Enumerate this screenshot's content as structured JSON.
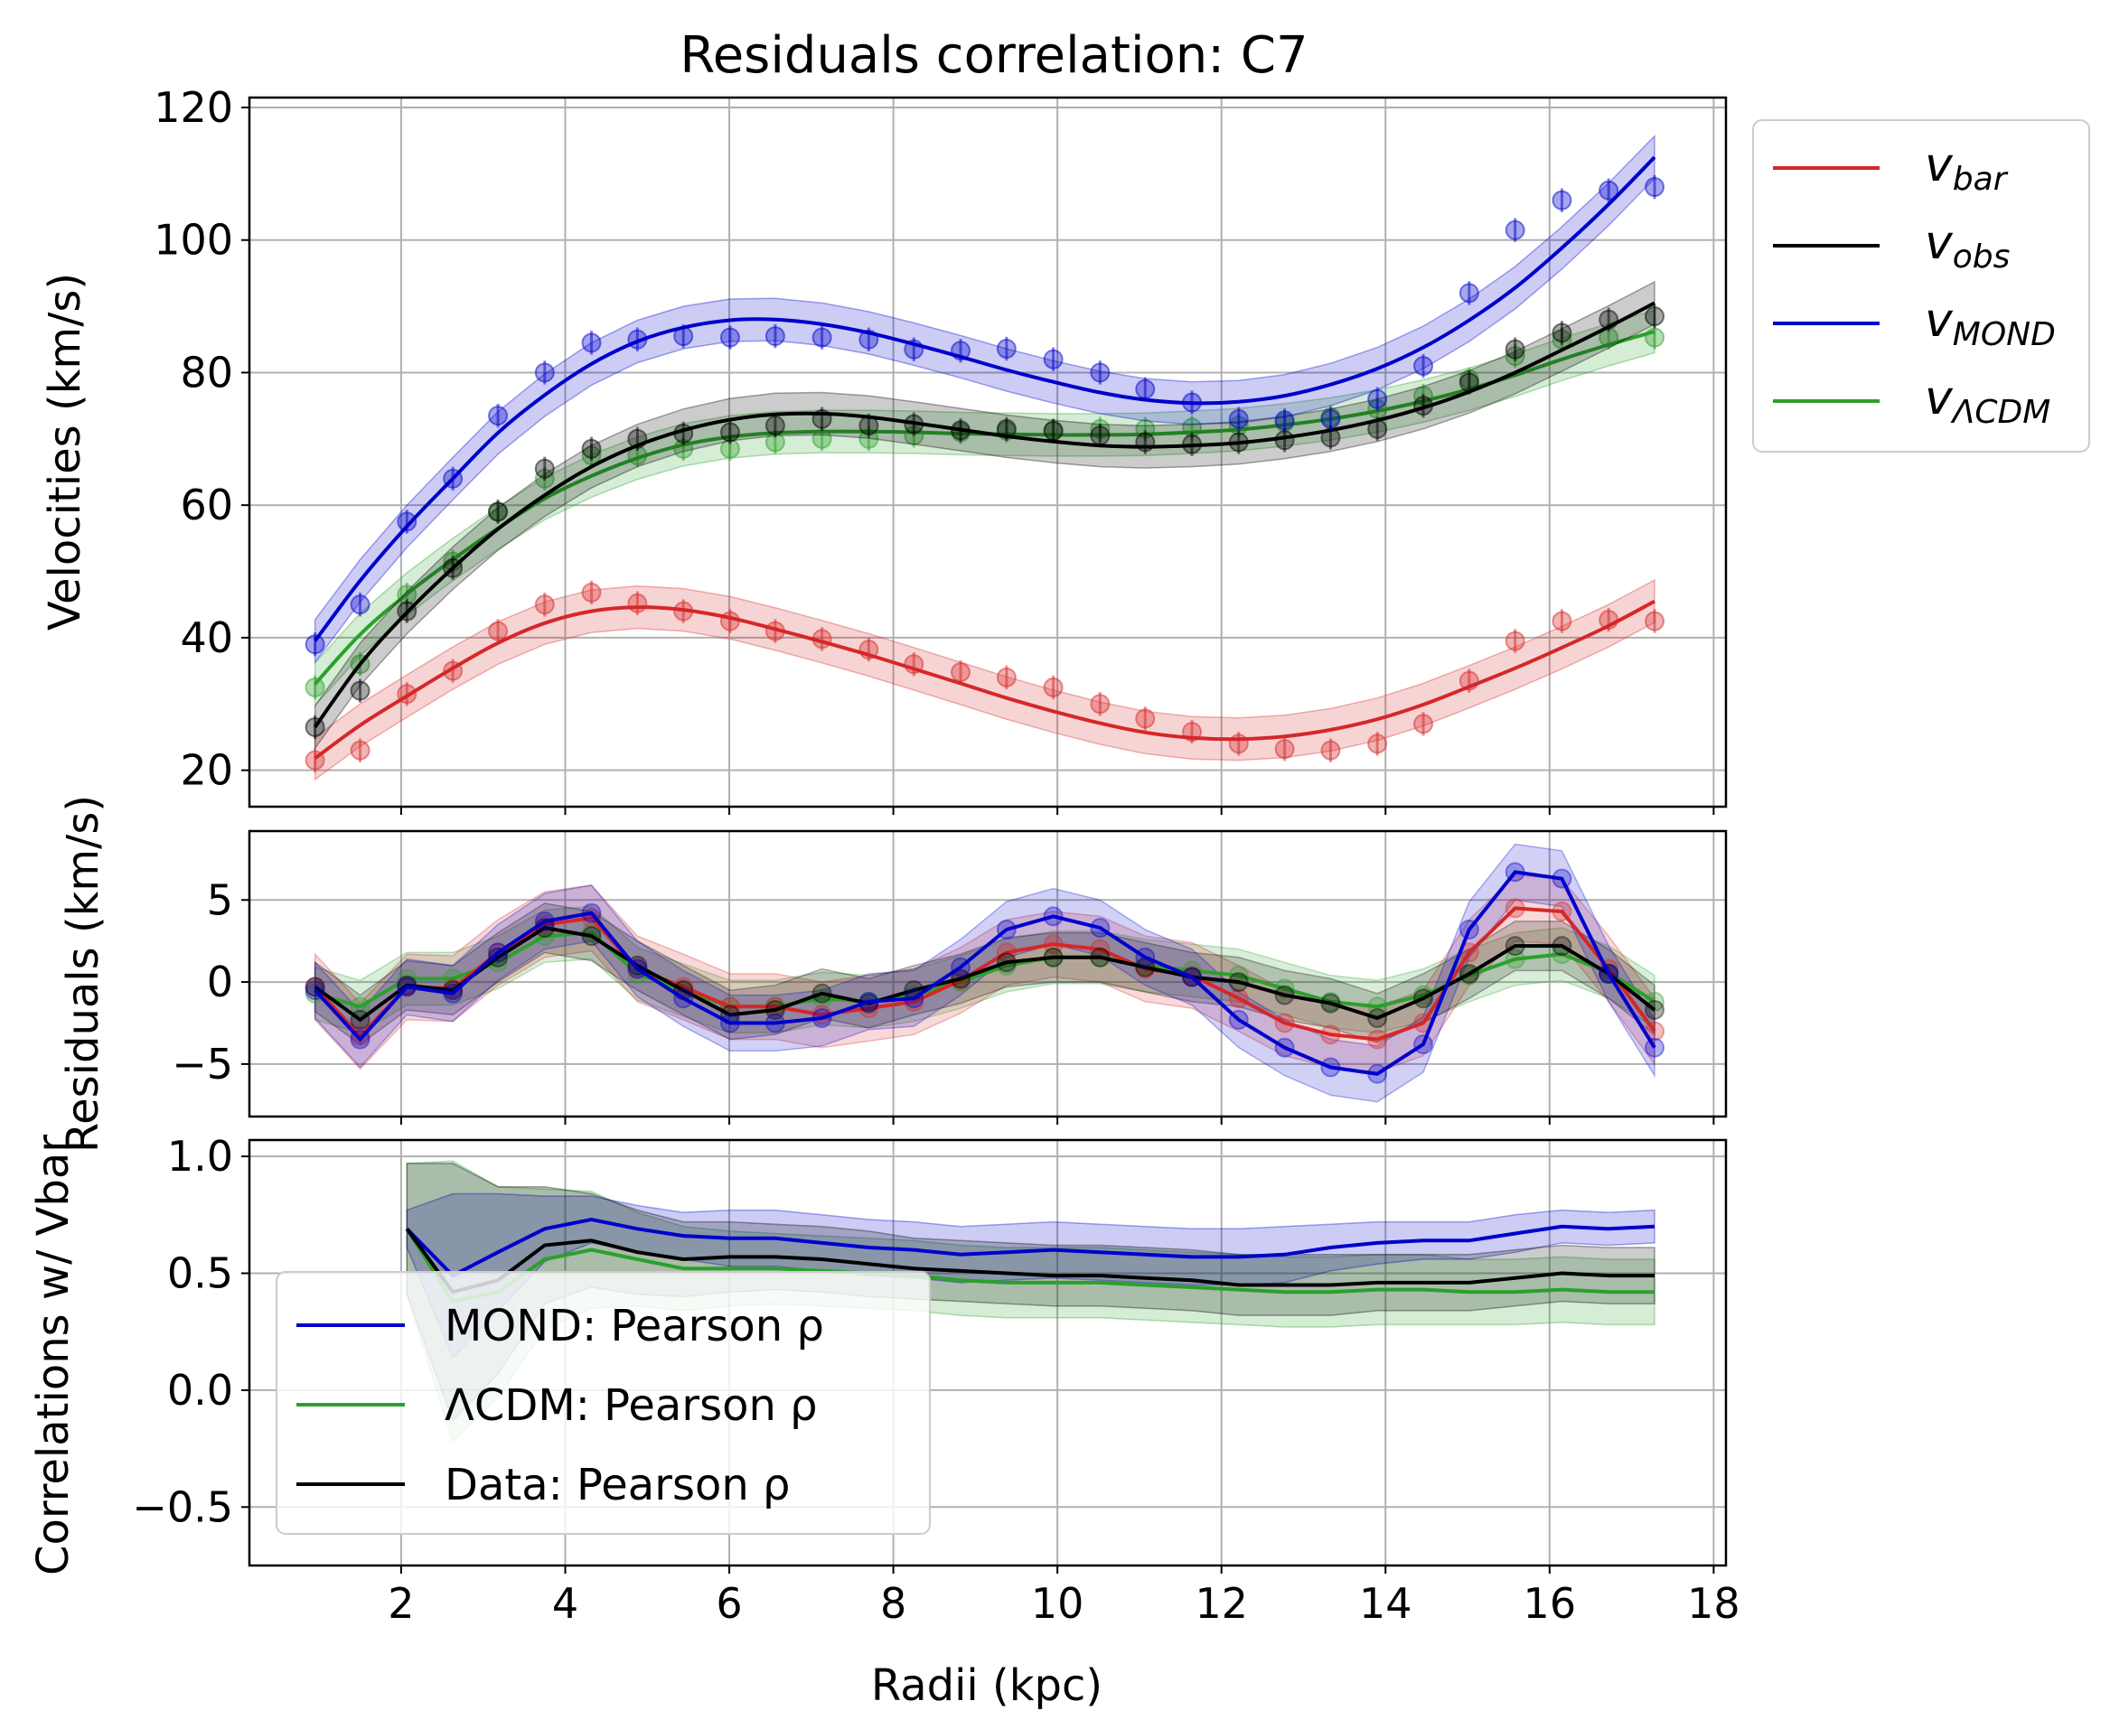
{
  "title": "Residuals correlation: C7",
  "xlabel": "Radii (kpc)",
  "colors": {
    "bar": "#d62728",
    "obs": "#000000",
    "mond": "#0000cc",
    "lcdm": "#2ca02c",
    "grid": "#b0b0b0"
  },
  "chart_data": [
    {
      "type": "line",
      "panel": "velocities",
      "ylabel": "Velocities (km/s)",
      "xlim": [
        0.15,
        18.15
      ],
      "ylim": [
        14.5,
        121.5
      ],
      "yticks": [
        20,
        40,
        60,
        80,
        100,
        120
      ],
      "grid": true,
      "legend_placement": "outside upper right",
      "x": [
        0.95,
        1.5,
        2.07,
        2.63,
        3.18,
        3.75,
        4.32,
        4.88,
        5.44,
        6.01,
        6.56,
        7.13,
        7.7,
        8.25,
        8.82,
        9.38,
        9.95,
        10.52,
        11.07,
        11.64,
        12.21,
        12.77,
        13.33,
        13.9,
        14.46,
        15.02,
        15.58,
        16.15,
        16.72,
        17.28
      ],
      "series": [
        {
          "name": "v_bar",
          "key": "bar",
          "points": [
            21.5,
            23,
            31.5,
            35,
            41,
            45,
            46.8,
            45.2,
            44,
            42.5,
            41,
            39.8,
            38.2,
            36,
            34.8,
            34,
            32.5,
            30,
            27.8,
            25.8,
            24,
            23.2,
            23,
            24,
            27,
            33.5,
            39.5,
            42.5,
            42.7,
            42.5
          ],
          "fit": [
            21.8,
            26.8,
            31.2,
            35.4,
            39.2,
            42.2,
            44.0,
            44.6,
            44.2,
            43.0,
            41.3,
            39.4,
            37.4,
            35.3,
            33.1,
            30.9,
            28.9,
            27.1,
            25.7,
            24.9,
            24.7,
            25.1,
            26.1,
            27.7,
            29.9,
            32.6,
            35.4,
            38.5,
            41.8,
            45.5
          ]
        },
        {
          "name": "v_obs",
          "key": "obs",
          "points": [
            26.5,
            32,
            44,
            50.5,
            59,
            65.5,
            68.5,
            70,
            70.8,
            71,
            72,
            73,
            72,
            72.2,
            71.3,
            71.5,
            71.2,
            70.5,
            69.5,
            69.2,
            69.5,
            69.8,
            70.2,
            71.5,
            75,
            78.5,
            83.5,
            86,
            88,
            88.5
          ],
          "fit": [
            26.5,
            36.0,
            43.8,
            50.5,
            56.4,
            61.5,
            65.8,
            69.0,
            71.3,
            72.9,
            73.7,
            73.8,
            73.3,
            72.4,
            71.4,
            70.4,
            69.6,
            69.0,
            68.8,
            69.0,
            69.4,
            70.2,
            71.3,
            72.8,
            74.7,
            77.1,
            80.0,
            83.4,
            86.9,
            90.5
          ]
        },
        {
          "name": "v_MOND",
          "key": "mond",
          "points": [
            39,
            45,
            57.5,
            64,
            73.5,
            80,
            84.5,
            85,
            85.5,
            85.3,
            85.5,
            85.3,
            85,
            83.5,
            83.3,
            83.6,
            82,
            80,
            77.5,
            75.5,
            73,
            72.8,
            73,
            76,
            81,
            92,
            101.5,
            106,
            107.5,
            108
          ],
          "fit": [
            39.5,
            48.6,
            56.8,
            64.0,
            70.9,
            76.6,
            81.3,
            84.7,
            86.8,
            87.9,
            88.0,
            87.3,
            86.0,
            84.3,
            82.4,
            80.4,
            78.6,
            77.0,
            75.9,
            75.4,
            75.6,
            76.5,
            78.2,
            80.6,
            83.8,
            87.9,
            92.8,
            98.8,
            105.4,
            112.5
          ]
        },
        {
          "name": "v_ΛCDM",
          "key": "lcdm",
          "points": [
            32.5,
            36,
            46.5,
            51.5,
            59,
            64,
            67.5,
            67.5,
            68.5,
            68.5,
            69.5,
            70,
            70,
            70.5,
            71,
            71.2,
            71.3,
            71.5,
            71.5,
            71.7,
            72,
            72.5,
            73.3,
            74.5,
            76.5,
            79,
            82.5,
            85,
            85.3,
            85.3
          ],
          "fit": [
            33.0,
            40.5,
            46.6,
            51.8,
            56.5,
            61.0,
            64.4,
            67.1,
            69.1,
            70.3,
            70.9,
            71.1,
            71.1,
            71.0,
            70.8,
            70.7,
            70.6,
            70.6,
            70.7,
            71.0,
            71.4,
            72.1,
            73.0,
            74.2,
            75.7,
            77.5,
            79.6,
            82.0,
            84.2,
            86.2
          ]
        }
      ]
    },
    {
      "type": "line",
      "panel": "residuals",
      "ylabel": "Residuals (km/s)",
      "xlim": [
        0.15,
        18.15
      ],
      "ylim": [
        -8.2,
        9.2
      ],
      "yticks": [
        5,
        0,
        -5
      ],
      "ytick_labels": [
        "5",
        "0",
        "−5"
      ],
      "grid": true,
      "x": [
        0.95,
        1.5,
        2.07,
        2.63,
        3.18,
        3.75,
        4.32,
        4.88,
        5.44,
        6.01,
        6.56,
        7.13,
        7.7,
        8.25,
        8.82,
        9.38,
        9.95,
        10.52,
        11.07,
        11.64,
        12.21,
        12.77,
        13.33,
        13.9,
        14.46,
        15.02,
        15.58,
        16.15,
        16.72,
        17.28
      ],
      "series": [
        {
          "name": "v_bar",
          "key": "bar",
          "values": [
            -0.3,
            -3.3,
            -0.3,
            -0.4,
            1.8,
            3.5,
            3.9,
            0.8,
            -0.3,
            -1.5,
            -1.5,
            -2.0,
            -1.6,
            -1.2,
            0.1,
            1.8,
            2.3,
            2.0,
            0.8,
            0.4,
            -1.0,
            -2.5,
            -3.2,
            -3.5,
            -2.5,
            1.8,
            4.5,
            4.3,
            0.8,
            -3.0
          ]
        },
        {
          "name": "v_obs",
          "key": "obs",
          "values": [
            -0.3,
            -2.3,
            -0.2,
            -0.5,
            1.5,
            3.3,
            2.8,
            1.0,
            -0.5,
            -2.0,
            -1.7,
            -0.7,
            -1.3,
            -0.5,
            0.2,
            1.2,
            1.5,
            1.5,
            0.9,
            0.3,
            0.0,
            -0.8,
            -1.3,
            -2.2,
            -1.0,
            0.5,
            2.2,
            2.2,
            0.5,
            -1.7
          ]
        },
        {
          "name": "v_MOND",
          "key": "mond",
          "values": [
            -0.5,
            -3.5,
            -0.3,
            -0.7,
            1.8,
            3.7,
            4.2,
            0.8,
            -1.0,
            -2.5,
            -2.5,
            -2.2,
            -1.2,
            -1.0,
            0.9,
            3.2,
            4.0,
            3.3,
            1.5,
            0.3,
            -2.3,
            -4.0,
            -5.2,
            -5.6,
            -3.8,
            3.2,
            6.7,
            6.3,
            0.5,
            -4.0
          ]
        },
        {
          "name": "v_ΛCDM",
          "key": "lcdm",
          "values": [
            -0.7,
            -1.5,
            0.2,
            0.2,
            1.2,
            2.8,
            3.0,
            0.5,
            -0.5,
            -1.5,
            -1.5,
            -1.0,
            -1.2,
            -0.8,
            0.0,
            1.0,
            1.5,
            1.5,
            1.0,
            0.7,
            0.4,
            -0.4,
            -1.2,
            -1.5,
            -0.8,
            0.4,
            1.4,
            1.7,
            0.6,
            -1.2
          ]
        }
      ]
    },
    {
      "type": "line",
      "panel": "correlations",
      "ylabel": "Correlations w/ Vbar",
      "xlim": [
        0.15,
        18.15
      ],
      "ylim": [
        -0.75,
        1.07
      ],
      "yticks": [
        1.0,
        0.5,
        0.0,
        -0.5
      ],
      "ytick_labels": [
        "1.0",
        "0.5",
        "0.0",
        "−0.5"
      ],
      "xticks": [
        2,
        4,
        6,
        8,
        10,
        12,
        14,
        16,
        18
      ],
      "grid": true,
      "legend_placement": "lower left",
      "x": [
        2.07,
        2.63,
        3.18,
        3.75,
        4.32,
        4.88,
        5.44,
        6.01,
        6.56,
        7.13,
        7.7,
        8.25,
        8.82,
        9.38,
        9.95,
        10.52,
        11.07,
        11.64,
        12.21,
        12.77,
        13.33,
        13.9,
        14.46,
        15.02,
        15.58,
        16.15,
        16.72,
        17.28
      ],
      "series": [
        {
          "name": "MOND: Pearson ρ",
          "key": "mond",
          "values": [
            0.69,
            0.49,
            0.59,
            0.69,
            0.73,
            0.69,
            0.66,
            0.65,
            0.65,
            0.63,
            0.61,
            0.6,
            0.58,
            0.59,
            0.6,
            0.59,
            0.58,
            0.57,
            0.57,
            0.58,
            0.61,
            0.63,
            0.64,
            0.64,
            0.67,
            0.7,
            0.69,
            0.7
          ],
          "band": [
            0.08,
            0.35,
            0.25,
            0.14,
            0.1,
            0.1,
            0.1,
            0.12,
            0.12,
            0.12,
            0.12,
            0.12,
            0.12,
            0.12,
            0.12,
            0.12,
            0.12,
            0.12,
            0.12,
            0.12,
            0.1,
            0.09,
            0.08,
            0.08,
            0.08,
            0.07,
            0.07,
            0.07
          ]
        },
        {
          "name": "ΛCDM: Pearson ρ",
          "key": "lcdm",
          "values": [
            0.69,
            0.38,
            0.42,
            0.56,
            0.6,
            0.56,
            0.52,
            0.52,
            0.52,
            0.51,
            0.5,
            0.49,
            0.47,
            0.46,
            0.46,
            0.46,
            0.45,
            0.44,
            0.43,
            0.42,
            0.42,
            0.43,
            0.43,
            0.42,
            0.42,
            0.43,
            0.42,
            0.42
          ],
          "band": [
            0.28,
            0.6,
            0.45,
            0.3,
            0.25,
            0.2,
            0.18,
            0.16,
            0.15,
            0.15,
            0.15,
            0.15,
            0.15,
            0.15,
            0.15,
            0.15,
            0.15,
            0.15,
            0.15,
            0.15,
            0.15,
            0.15,
            0.15,
            0.14,
            0.14,
            0.14,
            0.14,
            0.14
          ]
        },
        {
          "name": "Data: Pearson ρ",
          "key": "obs",
          "values": [
            0.69,
            0.42,
            0.47,
            0.62,
            0.64,
            0.59,
            0.56,
            0.57,
            0.57,
            0.56,
            0.54,
            0.52,
            0.51,
            0.5,
            0.49,
            0.49,
            0.48,
            0.47,
            0.45,
            0.45,
            0.45,
            0.46,
            0.46,
            0.46,
            0.48,
            0.5,
            0.49,
            0.49
          ],
          "band": [
            0.28,
            0.55,
            0.4,
            0.25,
            0.2,
            0.18,
            0.16,
            0.15,
            0.14,
            0.14,
            0.14,
            0.13,
            0.13,
            0.13,
            0.13,
            0.13,
            0.13,
            0.13,
            0.13,
            0.13,
            0.13,
            0.12,
            0.12,
            0.12,
            0.12,
            0.12,
            0.12,
            0.12
          ]
        }
      ]
    }
  ]
}
